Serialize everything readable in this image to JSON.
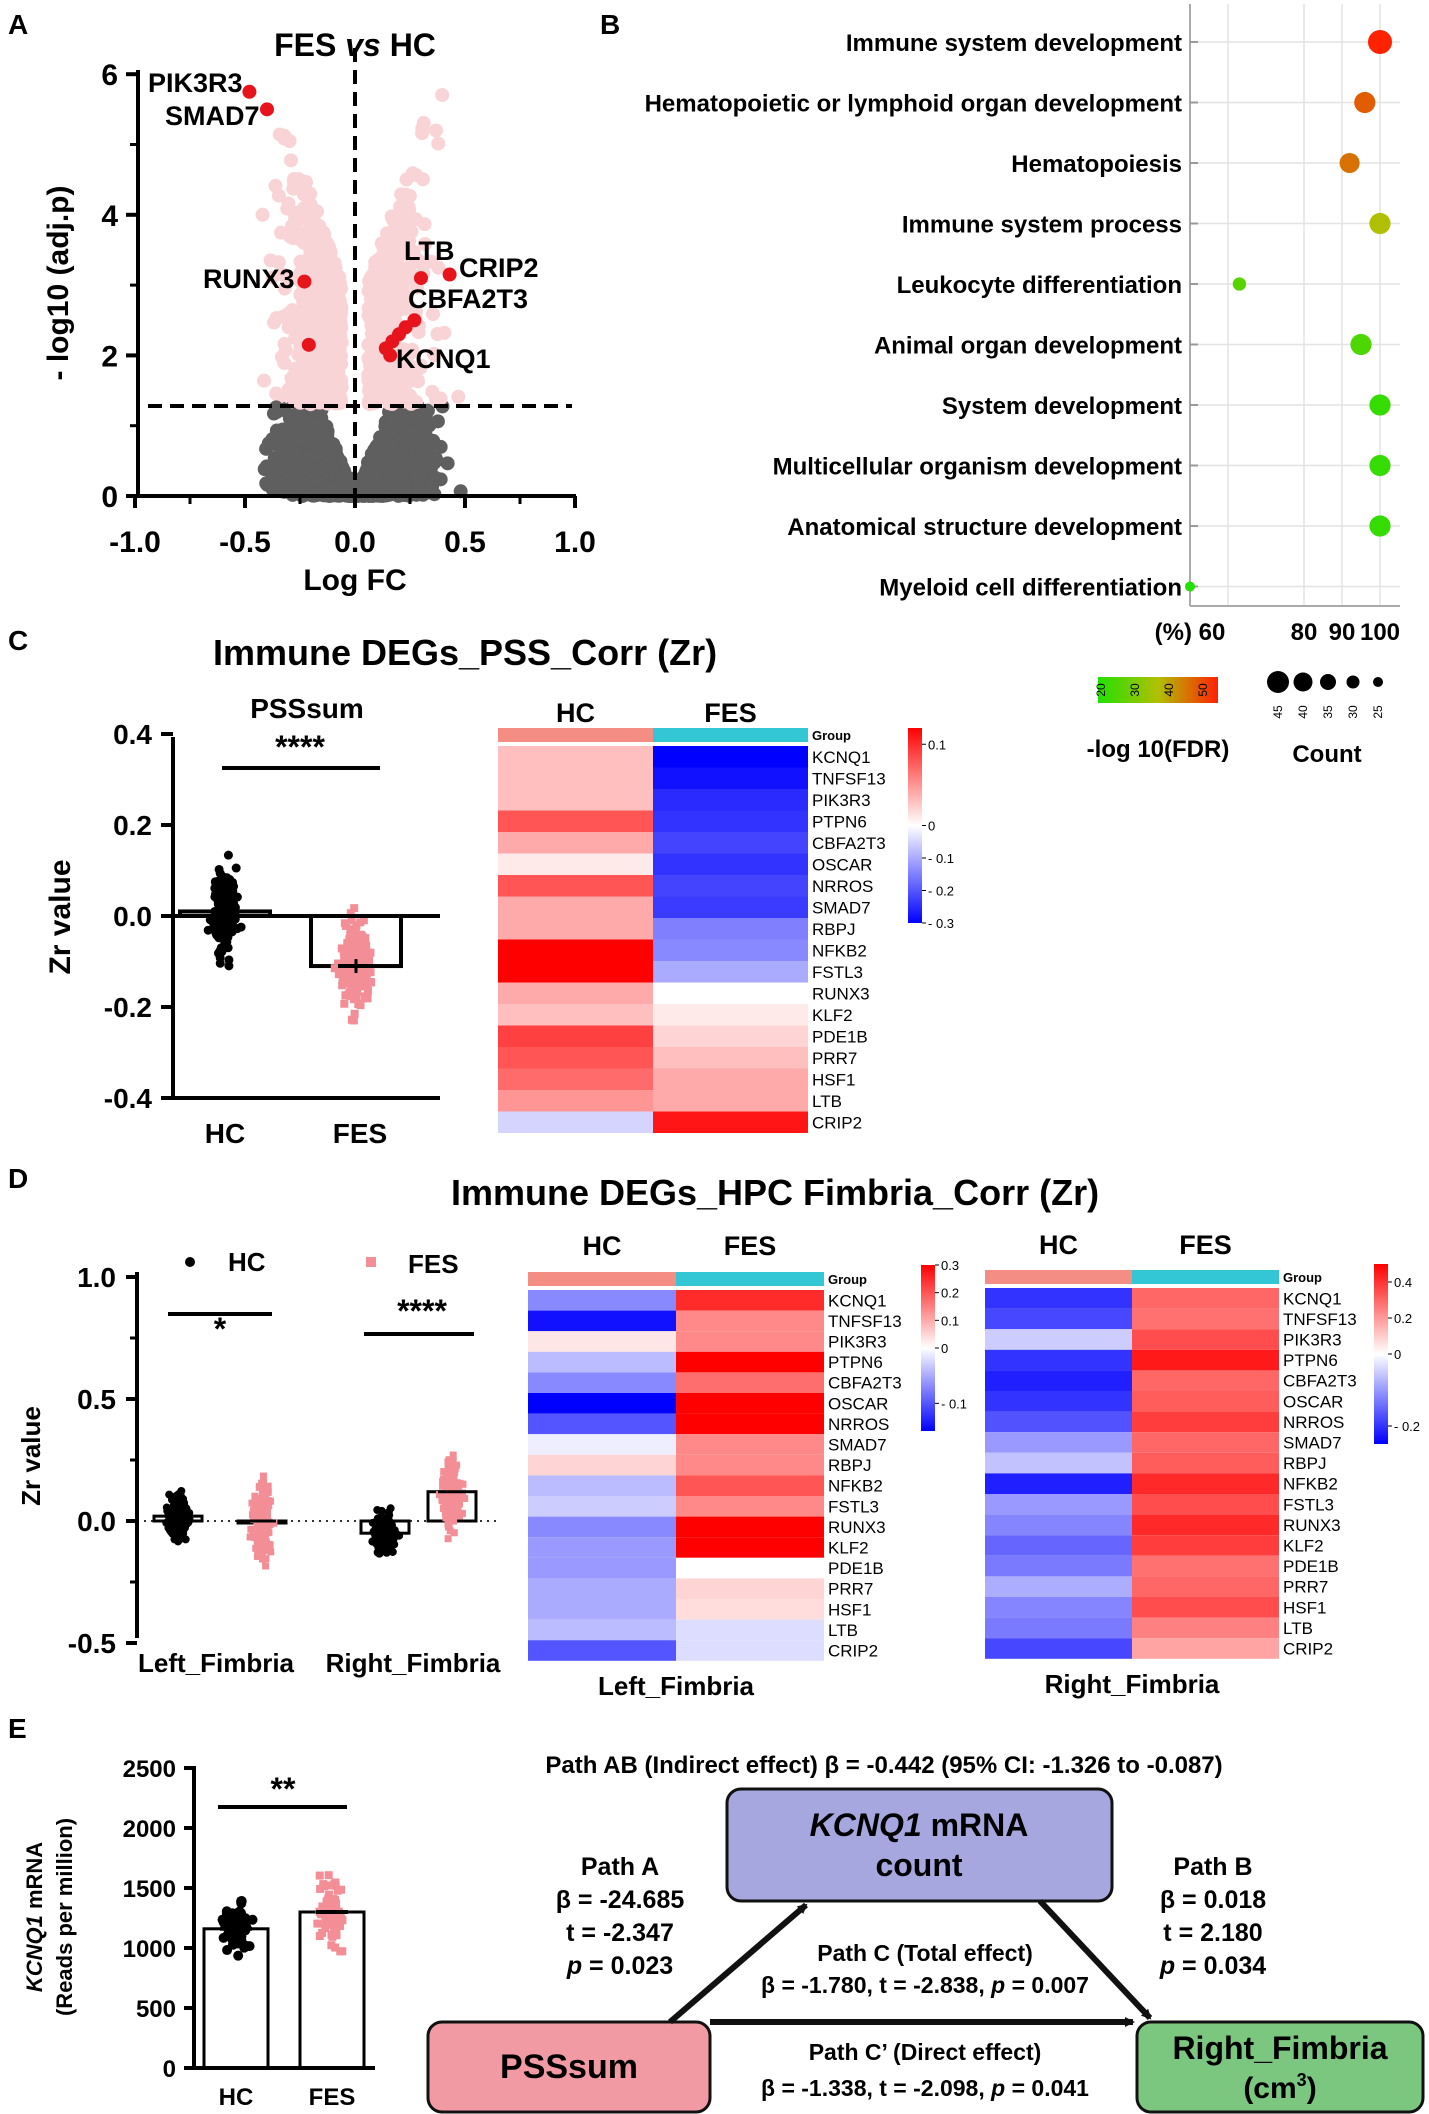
{
  "panel_letters": {
    "a": "A",
    "b": "B",
    "c": "C",
    "d": "D",
    "e": "E"
  },
  "colors": {
    "pink": "#f9d4d6",
    "red": "#e8141c",
    "gray": "#5f5f5f",
    "salmon": "#f48e96",
    "cyan": "#33c7d6",
    "heat_red": "#ff0000",
    "heat_blue": "#0000ff",
    "box_purple": "#a7a7e0",
    "box_pink": "#f29aa3",
    "box_green": "#7bc77f"
  },
  "panel_a": {
    "chart_data": {
      "type": "scatter",
      "title_prefix": "FES ",
      "title_vs": "vs",
      "title_suffix": " HC",
      "xlabel": "Log FC",
      "ylabel": "- log10 (adj.p)",
      "xlim": [
        -1.0,
        1.0
      ],
      "ylim": [
        0,
        6
      ],
      "xticks": [
        "-1.0",
        "-0.5",
        "0.0",
        "0.5",
        "1.0"
      ],
      "yticks": [
        "0",
        "2",
        "4",
        "6"
      ],
      "threshold_y": 1.3,
      "highlighted": [
        {
          "label": "PIK3R3",
          "x": -0.48,
          "y": 5.75
        },
        {
          "label": "SMAD7",
          "x": -0.4,
          "y": 5.5
        },
        {
          "label": "RUNX3",
          "x": -0.23,
          "y": 3.05
        },
        {
          "label": "",
          "x": -0.21,
          "y": 2.15
        },
        {
          "label": "LTB",
          "x": 0.3,
          "y": 3.1
        },
        {
          "label": "CRIP2",
          "x": 0.43,
          "y": 3.15
        },
        {
          "label": "CBFA2T3",
          "x": 0.27,
          "y": 2.5
        },
        {
          "label": "KCNQ1",
          "x": 0.17,
          "y": 2.2
        },
        {
          "label": "",
          "x": 0.14,
          "y": 2.1
        },
        {
          "label": "",
          "x": 0.2,
          "y": 2.3
        },
        {
          "label": "",
          "x": 0.23,
          "y": 2.4
        },
        {
          "label": "",
          "x": 0.16,
          "y": 2.0
        }
      ]
    }
  },
  "panel_b": {
    "chart_data": {
      "type": "scatter",
      "terms": [
        {
          "term": "Immune system development",
          "pct": 100,
          "count": 45,
          "fdr": 52
        },
        {
          "term": "Hematopoietic or lymphoid organ development",
          "pct": 96,
          "count": 40,
          "fdr": 46
        },
        {
          "term": "Hematopoiesis",
          "pct": 92,
          "count": 38,
          "fdr": 44
        },
        {
          "term": "Immune system process",
          "pct": 100,
          "count": 40,
          "fdr": 36
        },
        {
          "term": "Leukocyte differentiation",
          "pct": 63,
          "count": 26,
          "fdr": 26
        },
        {
          "term": "Animal organ development",
          "pct": 95,
          "count": 40,
          "fdr": 25
        },
        {
          "term": "System development",
          "pct": 100,
          "count": 40,
          "fdr": 22
        },
        {
          "term": "Multicellular organism development",
          "pct": 100,
          "count": 40,
          "fdr": 22
        },
        {
          "term": "Anatomical structure development",
          "pct": 100,
          "count": 40,
          "fdr": 22
        },
        {
          "term": "Myeloid cell differentiation",
          "pct": 50,
          "count": 20,
          "fdr": 20
        }
      ],
      "xticks": [
        "(%) 60",
        "80",
        "90",
        "100"
      ],
      "fdr_ticks": [
        "20",
        "30",
        "40",
        "50"
      ],
      "fdr_label": "-log 10(FDR)",
      "count_ticks": [
        "45",
        "40",
        "35",
        "30",
        "25"
      ],
      "count_label": "Count"
    }
  },
  "panel_c": {
    "title": "Immune DEGs_PSS_Corr (Zr)",
    "bar": {
      "chart_data": {
        "type": "bar",
        "title": "PSSsum",
        "ylabel": "Zr value",
        "categories": [
          "HC",
          "FES"
        ],
        "values": [
          0.01,
          -0.11
        ],
        "ylim": [
          -0.4,
          0.4
        ],
        "yticks": [
          "0.4",
          "0.2",
          "0.0",
          "-0.2",
          "-0.4"
        ],
        "significance": "****"
      }
    },
    "heatmap": {
      "chart_data": {
        "type": "heatmap",
        "columns": [
          "HC",
          "FES"
        ],
        "group_label": "Group",
        "scale_ticks": [
          "0.1",
          "0",
          "- 0.1",
          "- 0.2",
          "- 0.3"
        ],
        "vmin": -0.3,
        "vmax": 0.12,
        "genes": [
          "KCNQ1",
          "TNFSF13",
          "PIK3R3",
          "PTPN6",
          "CBFA2T3",
          "OSCAR",
          "NRROS",
          "SMAD7",
          "RBPJ",
          "NFKB2",
          "FSTL3",
          "RUNX3",
          "KLF2",
          "PDE1B",
          "PRR7",
          "HSF1",
          "LTB",
          "CRIP2"
        ],
        "values": [
          [
            0.03,
            -0.3
          ],
          [
            0.03,
            -0.28
          ],
          [
            0.03,
            -0.25
          ],
          [
            0.08,
            -0.24
          ],
          [
            0.04,
            -0.22
          ],
          [
            0.01,
            -0.24
          ],
          [
            0.08,
            -0.22
          ],
          [
            0.04,
            -0.23
          ],
          [
            0.04,
            -0.15
          ],
          [
            0.12,
            -0.14
          ],
          [
            0.12,
            -0.1
          ],
          [
            0.04,
            0.0
          ],
          [
            0.03,
            0.01
          ],
          [
            0.09,
            0.02
          ],
          [
            0.08,
            0.03
          ],
          [
            0.07,
            0.04
          ],
          [
            0.05,
            0.04
          ],
          [
            -0.05,
            0.11
          ]
        ]
      }
    }
  },
  "panel_d": {
    "title": "Immune DEGs_HPC Fimbria_Corr (Zr)",
    "bar": {
      "chart_data": {
        "type": "bar",
        "ylabel": "Zr value",
        "legend": [
          "HC",
          "FES"
        ],
        "categories": [
          "Left_Fimbria",
          "Right_Fimbria"
        ],
        "series": [
          {
            "name": "HC",
            "values": [
              0.02,
              -0.05
            ]
          },
          {
            "name": "FES",
            "values": [
              0.0,
              0.12
            ]
          }
        ],
        "ylim": [
          -0.5,
          1.0
        ],
        "yticks": [
          "1.0",
          "0.5",
          "0.0",
          "-0.5"
        ],
        "significance": [
          "*",
          "****"
        ]
      }
    },
    "heatmap_left": {
      "chart_data": {
        "type": "heatmap",
        "caption": "Left_Fimbria",
        "columns": [
          "HC",
          "FES"
        ],
        "group_label": "Group",
        "scale_ticks": [
          "0.3",
          "0.2",
          "0.1",
          "0",
          "- 0.1"
        ],
        "vmin": -0.15,
        "vmax": 0.3,
        "genes": [
          "KCNQ1",
          "TNFSF13",
          "PIK3R3",
          "PTPN6",
          "CBFA2T3",
          "OSCAR",
          "NRROS",
          "SMAD7",
          "RBPJ",
          "NFKB2",
          "FSTL3",
          "RUNX3",
          "KLF2",
          "PDE1B",
          "PRR7",
          "HSF1",
          "LTB",
          "CRIP2"
        ],
        "values": [
          [
            -0.07,
            0.25
          ],
          [
            -0.14,
            0.14
          ],
          [
            0.03,
            0.14
          ],
          [
            -0.04,
            0.3
          ],
          [
            -0.07,
            0.17
          ],
          [
            -0.15,
            0.3
          ],
          [
            -0.1,
            0.3
          ],
          [
            -0.01,
            0.14
          ],
          [
            0.05,
            0.14
          ],
          [
            -0.04,
            0.2
          ],
          [
            -0.03,
            0.14
          ],
          [
            -0.07,
            0.3
          ],
          [
            -0.06,
            0.3
          ],
          [
            -0.06,
            0.0
          ],
          [
            -0.05,
            0.05
          ],
          [
            -0.05,
            0.04
          ],
          [
            -0.04,
            -0.02
          ],
          [
            -0.1,
            -0.02
          ]
        ]
      }
    },
    "heatmap_right": {
      "chart_data": {
        "type": "heatmap",
        "caption": "Right_Fimbria",
        "columns": [
          "HC",
          "FES"
        ],
        "group_label": "Group",
        "scale_ticks": [
          "0.4",
          "0.2",
          "0",
          "- 0.2"
        ],
        "vmin": -0.25,
        "vmax": 0.5,
        "genes": [
          "KCNQ1",
          "TNFSF13",
          "PIK3R3",
          "PTPN6",
          "CBFA2T3",
          "OSCAR",
          "NRROS",
          "SMAD7",
          "RBPJ",
          "NFKB2",
          "FSTL3",
          "RUNX3",
          "KLF2",
          "PDE1B",
          "PRR7",
          "HSF1",
          "LTB",
          "CRIP2"
        ],
        "values": [
          [
            -0.2,
            0.3
          ],
          [
            -0.18,
            0.28
          ],
          [
            -0.05,
            0.35
          ],
          [
            -0.2,
            0.45
          ],
          [
            -0.22,
            0.3
          ],
          [
            -0.2,
            0.32
          ],
          [
            -0.17,
            0.38
          ],
          [
            -0.1,
            0.3
          ],
          [
            -0.06,
            0.32
          ],
          [
            -0.22,
            0.42
          ],
          [
            -0.1,
            0.35
          ],
          [
            -0.12,
            0.42
          ],
          [
            -0.15,
            0.38
          ],
          [
            -0.13,
            0.28
          ],
          [
            -0.08,
            0.3
          ],
          [
            -0.12,
            0.35
          ],
          [
            -0.13,
            0.25
          ],
          [
            -0.18,
            0.18
          ]
        ]
      }
    }
  },
  "panel_e": {
    "bar": {
      "chart_data": {
        "type": "bar",
        "ylabel_gene": "KCNQ1",
        "ylabel_rest": " mRNA",
        "ylabel_sub": "(Reads per million)",
        "categories": [
          "HC",
          "FES"
        ],
        "values": [
          1160,
          1300
        ],
        "ylim": [
          0,
          2500
        ],
        "yticks": [
          "2500",
          "2000",
          "1500",
          "1000",
          "500",
          "0"
        ],
        "significance": "**"
      }
    },
    "mediation": {
      "path_ab": "Path AB (Indirect effect) ",
      "path_ab_value": "β = -0.442 (95% CI: -1.326 to -0.087)",
      "mediator_gene": "KCNQ1",
      "mediator_rest": " mRNA",
      "mediator_line2": "count",
      "x_box": "PSSsum",
      "y_box_line1": "Right_Fimbria",
      "y_box_line2": "(cm",
      "y_box_sup": "3",
      "y_box_close": ")",
      "path_a": {
        "title": "Path A",
        "beta": "β = -24.685",
        "t": "t = -2.347",
        "p_label": "p",
        "p_value": " = 0.023"
      },
      "path_b": {
        "title": "Path B",
        "beta": "β = 0.018",
        "t": "t = 2.180",
        "p_label": "p",
        "p_value": " = 0.034"
      },
      "path_c": {
        "title": "Path C (Total effect)",
        "text_start": "β = -1.780, t = -2.838, ",
        "p_label": "p",
        "p_value": " = 0.007"
      },
      "path_c_prime": {
        "title": "Path C’ (Direct effect)",
        "text_start": "β = -1.338, t = -2.098, ",
        "p_label": "p",
        "p_value": " = 0.041"
      }
    }
  }
}
